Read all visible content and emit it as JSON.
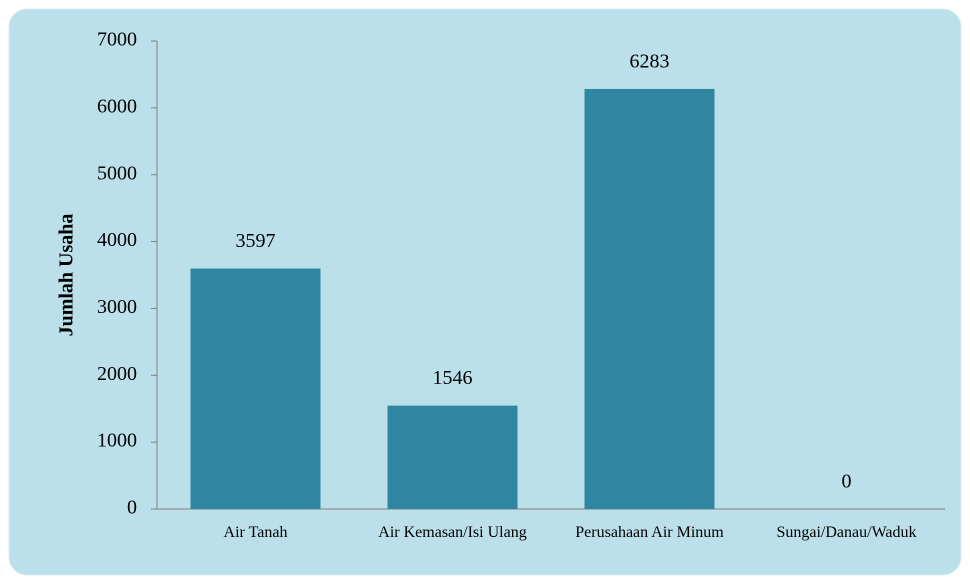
{
  "chart_data": {
    "type": "bar",
    "y_label": "Jumlah Usaha",
    "categories": [
      "Air Tanah",
      "Air Kemasan/Isi Ulang",
      "Perusahaan Air Minum",
      "Sungai/Danau/Waduk"
    ],
    "values": [
      3597,
      1546,
      6283,
      0
    ],
    "color": "#2f86a0",
    "ylim": [
      0,
      7000
    ],
    "yticks": [
      0,
      1000,
      2000,
      3000,
      4000,
      5000,
      6000,
      7000
    ],
    "grid": false
  }
}
